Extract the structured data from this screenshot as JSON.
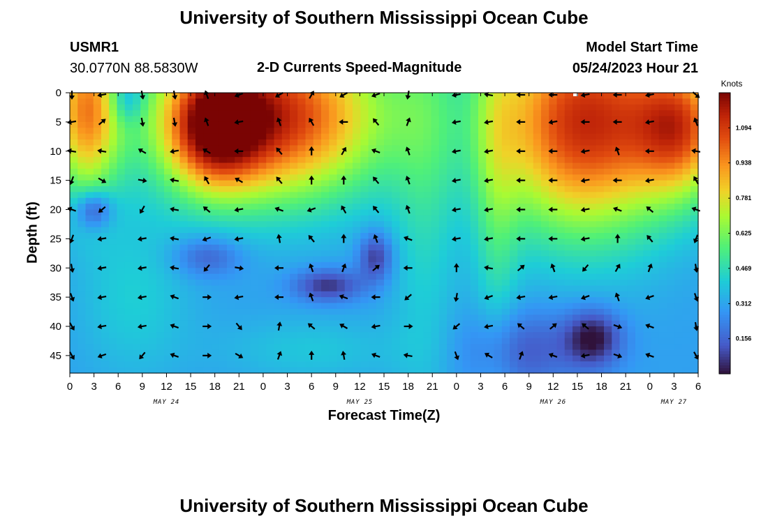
{
  "header": {
    "title": "University of Southern Mississippi Ocean Cube",
    "station_id": "USMR1",
    "station_coords": "30.0770N  88.5830W",
    "plot_title": "2-D Currents Speed-Magnitude",
    "model_start_label": "Model Start Time",
    "model_start_value": "05/24/2023 Hour 21"
  },
  "footer": {
    "title": "University of Southern Mississippi Ocean Cube"
  },
  "chart_data": {
    "type": "heatmap",
    "title": "2-D Currents Speed-Magnitude",
    "xlabel": "Forecast Time(Z)",
    "ylabel": "Depth (ft)",
    "x_tick_labels": [
      "0",
      "3",
      "6",
      "9",
      "12",
      "15",
      "18",
      "21",
      "0",
      "3",
      "6",
      "9",
      "12",
      "15",
      "18",
      "21",
      "0",
      "3",
      "6",
      "9",
      "12",
      "15",
      "18",
      "21",
      "0",
      "3",
      "6"
    ],
    "x_hours": [
      0,
      3,
      6,
      9,
      12,
      15,
      18,
      21,
      24,
      27,
      30,
      33,
      36,
      39,
      42,
      45,
      48,
      51,
      54,
      57,
      60,
      63,
      66,
      69,
      72,
      75,
      78
    ],
    "date_labels": [
      {
        "text": "MAY 24",
        "hour": 12
      },
      {
        "text": "MAY 25",
        "hour": 36
      },
      {
        "text": "MAY 26",
        "hour": 60
      },
      {
        "text": "MAY 27",
        "hour": 75
      }
    ],
    "y_ticks": [
      0,
      5,
      10,
      15,
      20,
      25,
      30,
      35,
      40,
      45
    ],
    "ylim": [
      48,
      0
    ],
    "xlim": [
      0,
      78
    ],
    "colorbar": {
      "unit": "Knots",
      "ticks": [
        "1.094",
        "0.938",
        "0.781",
        "0.625",
        "0.469",
        "0.312",
        "0.156"
      ],
      "tick_values": [
        1.094,
        0.938,
        0.781,
        0.625,
        0.469,
        0.312,
        0.156
      ],
      "range": [
        0,
        1.25
      ]
    },
    "speed_blobs_knots": [
      {
        "hour": 2,
        "depth": 3,
        "peak": 0.95,
        "sx": 3,
        "sy": 10
      },
      {
        "hour": 25,
        "depth": 4,
        "peak": 1.17,
        "sx": 10,
        "sy": 10
      },
      {
        "hour": 18,
        "depth": 6,
        "peak": 0.9,
        "sx": 4,
        "sy": 7
      },
      {
        "hour": 64,
        "depth": 5,
        "peak": 1.18,
        "sx": 8,
        "sy": 13
      },
      {
        "hour": 76,
        "depth": 6,
        "peak": 0.9,
        "sx": 4,
        "sy": 8
      },
      {
        "hour": 44,
        "depth": 12,
        "peak": 0.45,
        "sx": 3,
        "sy": 30
      },
      {
        "hour": 53,
        "depth": 15,
        "peak": 0.48,
        "sx": 2,
        "sy": 25
      },
      {
        "hour": 8,
        "depth": 35,
        "peak": 0.42,
        "sx": 5,
        "sy": 10
      },
      {
        "hour": 30,
        "depth": 44,
        "peak": 0.4,
        "sx": 8,
        "sy": 4
      },
      {
        "hour": 7,
        "depth": 1,
        "peak": 0.1,
        "sx": 1.5,
        "sy": 3,
        "low": true
      },
      {
        "hour": 3,
        "depth": 20,
        "peak": 0.02,
        "sx": 1.6,
        "sy": 2.3,
        "low": true
      },
      {
        "hour": 17,
        "depth": 28,
        "peak": 0.12,
        "sx": 3,
        "sy": 2.5,
        "low": true
      },
      {
        "hour": 32,
        "depth": 33,
        "peak": 0.05,
        "sx": 3,
        "sy": 2,
        "low": true
      },
      {
        "hour": 38,
        "depth": 28,
        "peak": 0.05,
        "sx": 1.5,
        "sy": 3,
        "low": true
      },
      {
        "hour": 65,
        "depth": 42,
        "peak": 0.0,
        "sx": 2.5,
        "sy": 3.5,
        "low": true
      },
      {
        "hour": 56,
        "depth": 44,
        "peak": 0.12,
        "sx": 5,
        "sy": 5,
        "low": true
      }
    ],
    "arrow_columns_hours": [
      0,
      4,
      9,
      13,
      17,
      21,
      26,
      30,
      34,
      38,
      42,
      48,
      52,
      56,
      60,
      64,
      68,
      72,
      78
    ],
    "arrow_rows_depth": [
      0,
      5,
      10,
      15,
      20,
      25,
      30,
      35,
      40,
      45
    ],
    "arrow_directions_deg": [
      [
        90,
        170,
        80,
        80,
        250,
        160,
        150,
        300,
        150,
        160,
        100,
        170,
        190,
        180,
        180,
        170,
        180,
        170,
        40
      ],
      [
        170,
        320,
        80,
        80,
        250,
        170,
        250,
        240,
        180,
        230,
        290,
        170,
        170,
        180,
        170,
        180,
        180,
        170,
        250
      ],
      [
        190,
        190,
        210,
        170,
        210,
        180,
        230,
        270,
        300,
        200,
        250,
        170,
        170,
        180,
        180,
        170,
        250,
        180,
        190
      ],
      [
        110,
        30,
        10,
        190,
        240,
        210,
        230,
        270,
        270,
        230,
        250,
        170,
        170,
        180,
        180,
        170,
        180,
        170,
        240
      ],
      [
        200,
        140,
        120,
        190,
        220,
        170,
        200,
        160,
        240,
        230,
        250,
        170,
        170,
        180,
        180,
        170,
        200,
        220,
        200
      ],
      [
        110,
        170,
        170,
        190,
        160,
        170,
        260,
        230,
        270,
        250,
        200,
        170,
        170,
        180,
        180,
        170,
        270,
        230,
        110
      ],
      [
        80,
        170,
        170,
        190,
        130,
        10,
        180,
        250,
        290,
        320,
        180,
        270,
        190,
        320,
        250,
        130,
        300,
        290,
        80
      ],
      [
        70,
        170,
        170,
        200,
        0,
        170,
        180,
        250,
        200,
        180,
        140,
        100,
        160,
        170,
        170,
        160,
        250,
        160,
        70
      ],
      [
        60,
        170,
        170,
        200,
        0,
        50,
        280,
        220,
        210,
        170,
        0,
        140,
        170,
        220,
        320,
        220,
        20,
        200,
        80
      ],
      [
        60,
        160,
        130,
        200,
        0,
        30,
        290,
        270,
        260,
        200,
        190,
        70,
        210,
        290,
        200,
        170,
        20,
        200,
        60
      ]
    ]
  }
}
